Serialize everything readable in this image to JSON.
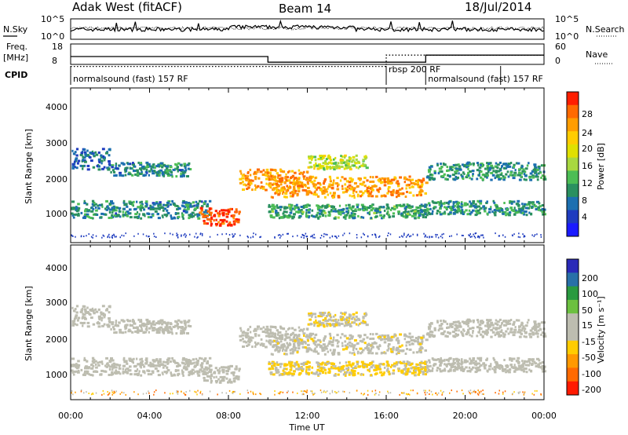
{
  "header": {
    "station": "Adak West (fitACF)",
    "beam": "Beam 14",
    "date": "18/Jul/2014"
  },
  "noise_panel": {
    "left_label": "N.Sky",
    "right_label": "N.Search",
    "ticks_left": [
      "10^5",
      "10^0"
    ],
    "ticks_right": [
      "10^5",
      "10^0"
    ]
  },
  "freq_panel": {
    "left_label_1": "Freq.",
    "left_label_2": "[MHz]",
    "right_label": "Nave",
    "ticks_left": [
      "18",
      "8"
    ],
    "ticks_right": [
      "60",
      "0"
    ],
    "freq_steps": [
      [
        0,
        13
      ],
      [
        10,
        9
      ],
      [
        18,
        14
      ],
      [
        24,
        14
      ]
    ],
    "nave_steps": [
      [
        0,
        6
      ],
      [
        16,
        6
      ],
      [
        16,
        14
      ],
      [
        24,
        14
      ]
    ]
  },
  "cpid": {
    "label": "CPID",
    "segments": [
      {
        "name": "normalsound (fast) 157 RF",
        "start": 0,
        "end": 16
      },
      {
        "name": "rbsp 200 RF",
        "start": 16,
        "end": 18
      },
      {
        "name": "normalsound (fast) 157 RF",
        "start": 18,
        "end": 21.8
      }
    ]
  },
  "power_panel": {
    "ylabel": "Slant Range [km]",
    "yticks": [
      "4000",
      "3000",
      "2000",
      "1000"
    ],
    "colorbar_label": "Power [dB]",
    "colorbar_ticks": [
      "28",
      "24",
      "20",
      "16",
      "12",
      "8",
      "4"
    ],
    "colorbar_colors": [
      "#ff1e00",
      "#ff6a00",
      "#ff9d00",
      "#ffcc00",
      "#e0e000",
      "#a8d840",
      "#4cbd55",
      "#2a9060",
      "#1c6fb0",
      "#1f3cbf",
      "#1a1aff"
    ]
  },
  "velocity_panel": {
    "ylabel": "Slant Range [km]",
    "yticks": [
      "4000",
      "3000",
      "2000",
      "1000"
    ],
    "colorbar_label": "Velocity [m s⁻¹]",
    "colorbar_ticks": [
      "200",
      "100",
      "50",
      "15",
      "-15",
      "-50",
      "-100",
      "-200"
    ],
    "colorbar_colors": [
      "#2a2ab8",
      "#2870a8",
      "#2a9a40",
      "#6cc040",
      "#bdbdb0",
      "#bdbdb0",
      "#ffcc00",
      "#ff9900",
      "#ff6a00",
      "#ff1a00"
    ]
  },
  "xaxis": {
    "label": "Time UT",
    "ticks": [
      "00:00",
      "04:00",
      "08:00",
      "12:00",
      "16:00",
      "20:00",
      "00:00"
    ]
  },
  "chart_data": {
    "type": "heatmap",
    "title": "Adak West (fitACF) Beam 14 18/Jul/2014",
    "xlabel": "Time UT",
    "ylabel": "Slant Range [km]",
    "xlim_hours": [
      0,
      24
    ],
    "ylim_km": [
      180,
      4600
    ],
    "power_range_db": [
      0,
      30
    ],
    "velocity_range_ms": [
      -250,
      250
    ],
    "scatter_bands": [
      {
        "t0": 0,
        "t1": 7,
        "r0": 900,
        "r1": 1400,
        "power_db": 8,
        "velocity_ms": -10
      },
      {
        "t0": 0,
        "t1": 2,
        "r0": 2300,
        "r1": 2900,
        "power_db": 6,
        "velocity_ms": 10
      },
      {
        "t0": 2,
        "t1": 6,
        "r0": 2100,
        "r1": 2500,
        "power_db": 8,
        "velocity_ms": -5
      },
      {
        "t0": 6.5,
        "t1": 8.5,
        "r0": 700,
        "r1": 1200,
        "power_db": 29,
        "velocity_ms": -5
      },
      {
        "t0": 8.5,
        "t1": 12,
        "r0": 1700,
        "r1": 2300,
        "power_db": 24,
        "velocity_ms": -10
      },
      {
        "t0": 10,
        "t1": 18,
        "r0": 1500,
        "r1": 2100,
        "power_db": 24,
        "velocity_ms": -40
      },
      {
        "t0": 10,
        "t1": 18,
        "r0": 900,
        "r1": 1300,
        "power_db": 10,
        "velocity_ms": -60
      },
      {
        "t0": 12,
        "t1": 15,
        "r0": 2300,
        "r1": 2700,
        "power_db": 16,
        "velocity_ms": -50
      },
      {
        "t0": 18,
        "t1": 24,
        "r0": 2000,
        "r1": 2500,
        "power_db": 9,
        "velocity_ms": -5
      },
      {
        "t0": 18,
        "t1": 24,
        "r0": 1000,
        "r1": 1400,
        "power_db": 9,
        "velocity_ms": 5
      }
    ]
  }
}
